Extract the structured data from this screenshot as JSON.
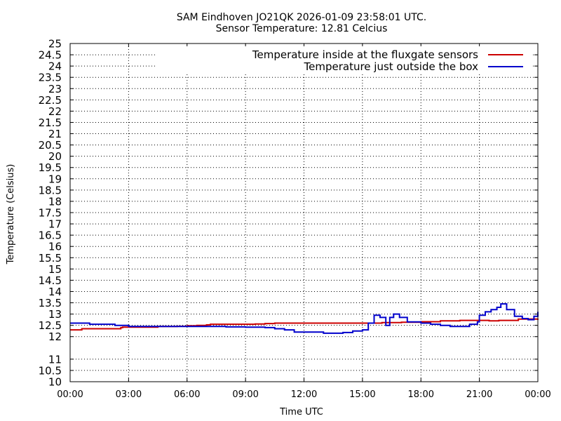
{
  "chart_data": {
    "type": "line",
    "title": "SAM Eindhoven JO21QK 2026-01-09 23:58:01 UTC.",
    "subtitle": "Sensor Temperature: 12.81 Celcius",
    "xlabel": "Time UTC",
    "ylabel": "Temperature (Celsius)",
    "x_unit": "hours UTC",
    "xlim": [
      0,
      24
    ],
    "ylim": [
      10,
      25
    ],
    "x_ticks": [
      0,
      3,
      6,
      9,
      12,
      15,
      18,
      21,
      24
    ],
    "x_tick_labels": [
      "00:00",
      "03:00",
      "06:00",
      "09:00",
      "12:00",
      "15:00",
      "18:00",
      "21:00",
      "00:00"
    ],
    "y_ticks": [
      10,
      10.5,
      11,
      12,
      12.5,
      13,
      13.5,
      14,
      14.5,
      15,
      15.5,
      16,
      16.5,
      17,
      17.5,
      18,
      18.5,
      19,
      19.5,
      20,
      20.5,
      21,
      21.5,
      22,
      22.5,
      23,
      23.5,
      24,
      24.5,
      25
    ],
    "y_tick_labels": [
      "10",
      "10.5",
      "11",
      "12",
      "12.5",
      "13",
      "13.5",
      "14",
      "14.5",
      "15",
      "15.5",
      "16",
      "16.5",
      "17",
      "17.5",
      "18",
      "18.5",
      "19",
      "19.5",
      "20",
      "20.5",
      "21",
      "21.5",
      "22",
      "22.5",
      "23",
      "23.5",
      "24",
      "24.5",
      "25"
    ],
    "grid": true,
    "legend_position": "top-right",
    "series": [
      {
        "name": "Temperature inside at the fluxgate sensors",
        "color": "#cc0000",
        "x": [
          0,
          0.5,
          0.6,
          2.0,
          2.1,
          2.6,
          2.7,
          4.5,
          5.5,
          6.0,
          6.5,
          7.0,
          7.2,
          8.0,
          9.0,
          9.5,
          10.0,
          10.5,
          11.0,
          12.0,
          13.0,
          14.0,
          15.0,
          16.0,
          16.2,
          17.0,
          18.0,
          19.0,
          20.0,
          21.0,
          21.5,
          22.0,
          23.0,
          24.0
        ],
        "y": [
          12.3,
          12.3,
          12.35,
          12.35,
          12.35,
          12.4,
          12.42,
          12.45,
          12.46,
          12.48,
          12.5,
          12.52,
          12.55,
          12.55,
          12.55,
          12.56,
          12.58,
          12.6,
          12.6,
          12.6,
          12.6,
          12.6,
          12.6,
          12.62,
          12.62,
          12.64,
          12.66,
          12.7,
          12.72,
          12.72,
          12.7,
          12.72,
          12.78,
          12.8
        ]
      },
      {
        "name": "Temperature just outside the box",
        "color": "#0000cc",
        "x": [
          0,
          0.8,
          1.0,
          2.0,
          2.3,
          3.0,
          4.0,
          4.5,
          5.0,
          6.0,
          7.0,
          8.0,
          9.0,
          10.0,
          10.5,
          11.0,
          11.5,
          12.0,
          12.5,
          13.0,
          14.0,
          14.5,
          15.0,
          15.3,
          15.6,
          15.9,
          16.2,
          16.4,
          16.6,
          16.9,
          17.3,
          18.0,
          18.5,
          19.0,
          19.5,
          20.0,
          20.5,
          20.9,
          21.0,
          21.3,
          21.6,
          21.9,
          22.1,
          22.4,
          22.8,
          23.2,
          23.5,
          23.8,
          24.0
        ],
        "y": [
          12.6,
          12.6,
          12.55,
          12.55,
          12.5,
          12.45,
          12.45,
          12.45,
          12.45,
          12.45,
          12.45,
          12.43,
          12.42,
          12.4,
          12.35,
          12.3,
          12.2,
          12.2,
          12.2,
          12.15,
          12.18,
          12.25,
          12.3,
          12.6,
          12.95,
          12.85,
          12.5,
          12.85,
          13.0,
          12.85,
          12.65,
          12.6,
          12.55,
          12.5,
          12.45,
          12.45,
          12.55,
          12.65,
          12.95,
          13.1,
          13.2,
          13.3,
          13.45,
          13.2,
          12.9,
          12.8,
          12.75,
          12.9,
          13.1
        ]
      }
    ]
  }
}
